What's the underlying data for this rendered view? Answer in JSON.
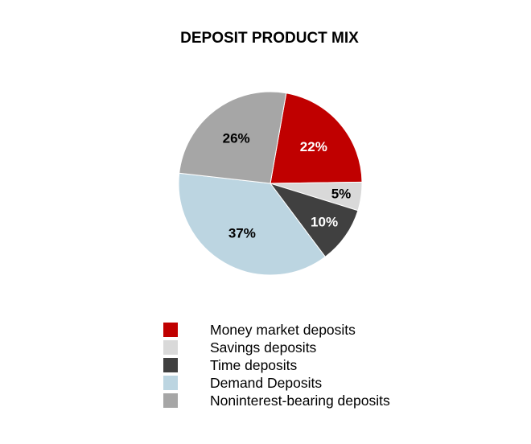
{
  "chart_data": {
    "type": "pie",
    "title": "DEPOSIT PRODUCT MIX",
    "slices": [
      {
        "label": "Money market deposits",
        "value": 22,
        "data_label": "22%",
        "color": "#c00000",
        "label_color": "#ffffff"
      },
      {
        "label": "Savings deposits",
        "value": 5,
        "data_label": "5%",
        "color": "#d9d9d9",
        "label_color": "#000000"
      },
      {
        "label": "Time deposits",
        "value": 10,
        "data_label": "10%",
        "color": "#404040",
        "label_color": "#ffffff"
      },
      {
        "label": "Demand Deposits",
        "value": 37,
        "data_label": "37%",
        "color": "#bcd5e1",
        "label_color": "#000000"
      },
      {
        "label": "Noninterest-bearing deposits",
        "value": 26,
        "data_label": "26%",
        "color": "#a6a6a6",
        "label_color": "#000000"
      }
    ],
    "legend_position": "bottom"
  }
}
